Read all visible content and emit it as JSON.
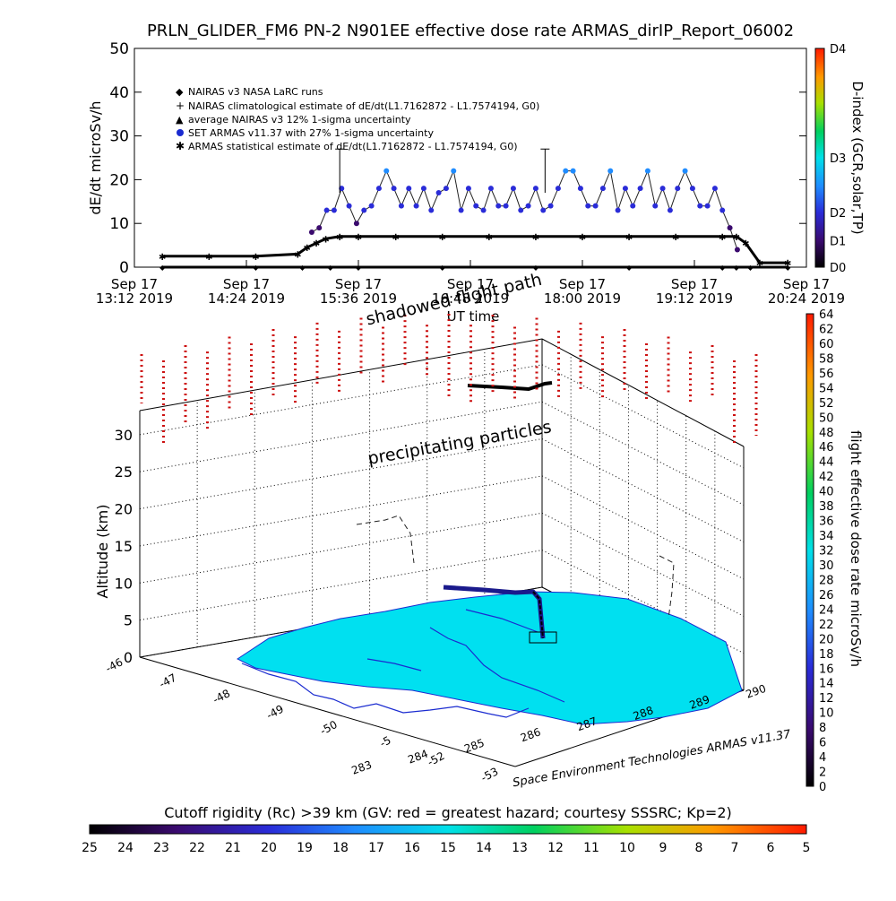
{
  "chart_data": [
    {
      "type": "scatter",
      "title": "PRLN_GLIDER_FM6 PN-2 N901EE effective dose rate ARMAS_dirIP_Report_06002",
      "ylabel": "dE/dt microSv/h",
      "xlabel": "UT time",
      "ylim": [
        0,
        50
      ],
      "y_ticks": [
        0,
        10,
        20,
        30,
        40,
        50
      ],
      "x_ticks": [
        {
          "d": "Sep 17",
          "t": "13:12 2019"
        },
        {
          "d": "Sep 17",
          "t": "14:24 2019"
        },
        {
          "d": "Sep 17",
          "t": "15:36 2019"
        },
        {
          "d": "Sep 17",
          "t": "16:48 2019"
        },
        {
          "d": "Sep 17",
          "t": "18:00 2019"
        },
        {
          "d": "Sep 17",
          "t": "19:12 2019"
        },
        {
          "d": "Sep 17",
          "t": "20:24 2019"
        }
      ],
      "legend": [
        {
          "symbol": "diamond",
          "text": "NAIRAS v3 NASA LaRC runs"
        },
        {
          "symbol": "plus",
          "text": "NAIRAS climatological estimate of dE/dt(L1.7162872 - L1.7574194, G0)"
        },
        {
          "symbol": "triangle",
          "text": "average NAIRAS v3 12% 1-sigma uncertainty"
        },
        {
          "symbol": "dot",
          "text": "SET ARMAS v11.37 with 27% 1-sigma uncertainty"
        },
        {
          "symbol": "star",
          "text": "ARMAS statistical estimate of dE/dt(L1.7162872 - L1.7574194, G0)"
        }
      ],
      "legend_position": "top-left",
      "colorbar_right": {
        "label": "D-index (GCR,solar,TP)",
        "ticks": [
          "D0",
          "D1",
          "D2",
          "D3",
          "D4"
        ]
      },
      "series": [
        {
          "marker": "dot",
          "x_hours": [
            15.1,
            15.18,
            15.26,
            15.34,
            15.42,
            15.5,
            15.58,
            15.66,
            15.74,
            15.82,
            15.9,
            15.98,
            16.06,
            16.14,
            16.22,
            16.3,
            16.38,
            16.46,
            16.54,
            16.62,
            16.7,
            16.78,
            16.86,
            16.94,
            17.02,
            17.1,
            17.18,
            17.26,
            17.34,
            17.42,
            17.5,
            17.58,
            17.66,
            17.74,
            17.82,
            17.9,
            17.98,
            18.06,
            18.14,
            18.22,
            18.3,
            18.38,
            18.46,
            18.54,
            18.62,
            18.7,
            18.78,
            18.86,
            18.94,
            19.02,
            19.1,
            19.18,
            19.26,
            19.34,
            19.42,
            19.5,
            19.58,
            19.66
          ],
          "values": [
            8,
            9,
            13,
            13,
            18,
            14,
            10,
            13,
            14,
            18,
            22,
            18,
            14,
            18,
            14,
            18,
            13,
            17,
            18,
            22,
            13,
            18,
            14,
            13,
            18,
            14,
            14,
            18,
            13,
            14,
            18,
            13,
            14,
            18,
            22,
            22,
            18,
            14,
            14,
            18,
            22,
            13,
            18,
            14,
            18,
            22,
            14,
            18,
            13,
            18,
            22,
            18,
            14,
            14,
            18,
            13,
            9,
            4
          ]
        },
        {
          "marker": "star",
          "x_hours": [
            13.5,
            14.0,
            14.5,
            14.95,
            15.05,
            15.15,
            15.25,
            15.4,
            15.6,
            16.0,
            16.5,
            17.0,
            17.5,
            18.0,
            18.5,
            19.0,
            19.5,
            19.65,
            19.75,
            19.9,
            20.2
          ],
          "values": [
            2.5,
            2.5,
            2.5,
            3.0,
            4.5,
            5.5,
            6.5,
            7,
            7,
            7,
            7,
            7,
            7,
            7,
            7,
            7,
            7,
            7,
            5.5,
            1,
            1
          ]
        },
        {
          "marker": "diamond",
          "x_hours": [
            13.5,
            14.5,
            15.0,
            15.3,
            15.6,
            16.5,
            17.5,
            18.5,
            19.5,
            19.65,
            19.8,
            20.2
          ],
          "values": [
            0,
            0,
            0,
            0,
            0,
            0,
            0,
            0,
            0,
            0,
            0,
            0
          ]
        }
      ]
    },
    {
      "type": "scatter",
      "zlabel": "Altitude (km)",
      "z_ticks": [
        0,
        5,
        10,
        15,
        20,
        25,
        30
      ],
      "x_ticks": [
        "-46",
        "-47",
        "-48",
        "-49",
        "-50",
        "-5",
        "-52",
        "-53"
      ],
      "y_ticks": [
        "283",
        "284",
        "285",
        "286",
        "287",
        "288",
        "289",
        "290"
      ],
      "annotations": [
        "shadowed flight path",
        "precipitating particles"
      ],
      "credit": "Space Environment Technologies ARMAS v11.37",
      "colorbar_right": {
        "label": "flight effective dose rate microSv/h",
        "ticks": [
          0,
          2,
          4,
          6,
          8,
          10,
          12,
          14,
          16,
          18,
          20,
          22,
          24,
          26,
          28,
          30,
          32,
          34,
          36,
          38,
          40,
          42,
          44,
          46,
          48,
          50,
          52,
          54,
          56,
          58,
          60,
          62,
          64
        ]
      },
      "colorbar_bottom": {
        "label": "Cutoff rigidity (Rc) >39 km (GV: red = greatest hazard; courtesy SSSRC; Kp=2)",
        "ticks": [
          25,
          24,
          23,
          22,
          21,
          20,
          19,
          18,
          17,
          16,
          15,
          14,
          13,
          12,
          11,
          10,
          9,
          8,
          7,
          6,
          5
        ]
      }
    }
  ]
}
